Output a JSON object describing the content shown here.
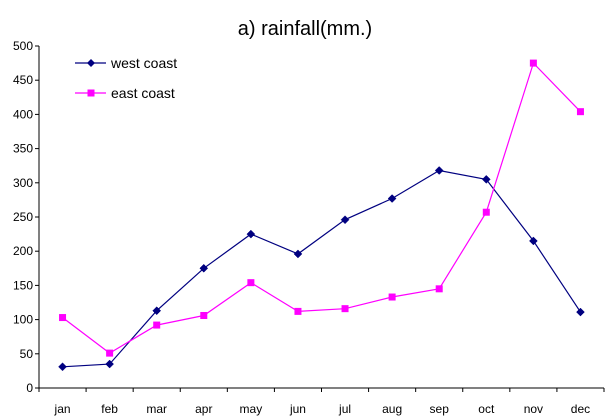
{
  "chart_data": {
    "type": "line",
    "title": "a) rainfall(mm.)",
    "xlabel": "",
    "ylabel": "",
    "categories": [
      "jan",
      "feb",
      "mar",
      "apr",
      "may",
      "jun",
      "jul",
      "aug",
      "sep",
      "oct",
      "nov",
      "dec"
    ],
    "ylim": [
      0,
      500
    ],
    "yticks": [
      0,
      50,
      100,
      150,
      200,
      250,
      300,
      350,
      400,
      450,
      500
    ],
    "yticklabels": [
      "0",
      "50",
      "100",
      "150",
      "200",
      "250",
      "300",
      "350",
      "400",
      "450",
      "500"
    ],
    "grid": false,
    "legend_position": "top-left",
    "series": [
      {
        "name": "west coast",
        "color": "#000080",
        "marker": "diamond",
        "values": [
          31,
          35,
          113,
          175,
          225,
          196,
          246,
          277,
          318,
          305,
          215,
          111
        ]
      },
      {
        "name": "east coast",
        "color": "#FF00FF",
        "marker": "square",
        "values": [
          103,
          51,
          92,
          106,
          154,
          112,
          116,
          133,
          145,
          257,
          475,
          404
        ]
      }
    ]
  }
}
